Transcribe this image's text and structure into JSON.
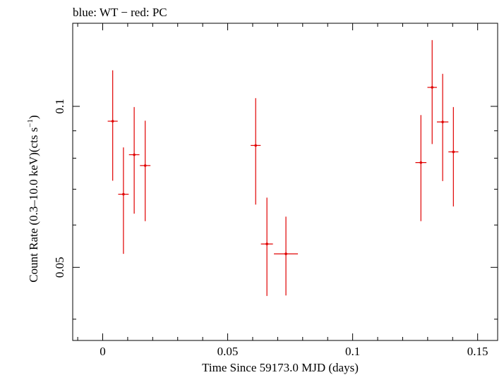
{
  "chart_data": {
    "type": "scatter",
    "title": "blue: WT − red: PC",
    "xlabel": "Time Since 59173.0 MJD (days)",
    "ylabel_main": "Count Rate (0.3–10.0 keV)(cts s",
    "ylabel_sup": "−1",
    "ylabel_close": ")",
    "x_scale": "linear",
    "y_scale": "log",
    "xlim": [
      -0.012,
      0.158
    ],
    "ylim": [
      0.0365,
      0.143
    ],
    "x_ticks": [
      {
        "value": 0,
        "label": "0"
      },
      {
        "value": 0.05,
        "label": "0.05"
      },
      {
        "value": 0.1,
        "label": "0.1"
      },
      {
        "value": 0.15,
        "label": "0.15"
      }
    ],
    "x_minor_step": 0.01,
    "y_ticks": [
      {
        "value": 0.05,
        "label": "0.05"
      },
      {
        "value": 0.1,
        "label": "0.1"
      }
    ],
    "y_minor": [
      0.04,
      0.06,
      0.07,
      0.08,
      0.09
    ],
    "color": "#e00000",
    "series": [
      {
        "points": [
          {
            "x": 0.004,
            "xerr": 0.002,
            "y": 0.0938,
            "ylo": 0.0726,
            "yhi": 0.1168
          },
          {
            "x": 0.0083,
            "xerr": 0.0021,
            "y": 0.0685,
            "ylo": 0.053,
            "yhi": 0.0838
          },
          {
            "x": 0.0126,
            "xerr": 0.0021,
            "y": 0.0812,
            "ylo": 0.063,
            "yhi": 0.0997
          },
          {
            "x": 0.017,
            "xerr": 0.0021,
            "y": 0.0775,
            "ylo": 0.061,
            "yhi": 0.094
          },
          {
            "x": 0.0612,
            "xerr": 0.002,
            "y": 0.0845,
            "ylo": 0.0655,
            "yhi": 0.1036
          },
          {
            "x": 0.0657,
            "xerr": 0.0024,
            "y": 0.0553,
            "ylo": 0.0442,
            "yhi": 0.0675
          },
          {
            "x": 0.0733,
            "xerr": 0.0048,
            "y": 0.053,
            "ylo": 0.0443,
            "yhi": 0.0622
          },
          {
            "x": 0.1273,
            "xerr": 0.0022,
            "y": 0.0785,
            "ylo": 0.061,
            "yhi": 0.0963
          },
          {
            "x": 0.1318,
            "xerr": 0.0019,
            "y": 0.1085,
            "ylo": 0.085,
            "yhi": 0.133
          },
          {
            "x": 0.136,
            "xerr": 0.0023,
            "y": 0.0935,
            "ylo": 0.0725,
            "yhi": 0.115
          },
          {
            "x": 0.1403,
            "xerr": 0.002,
            "y": 0.0822,
            "ylo": 0.065,
            "yhi": 0.0997
          }
        ]
      }
    ]
  }
}
